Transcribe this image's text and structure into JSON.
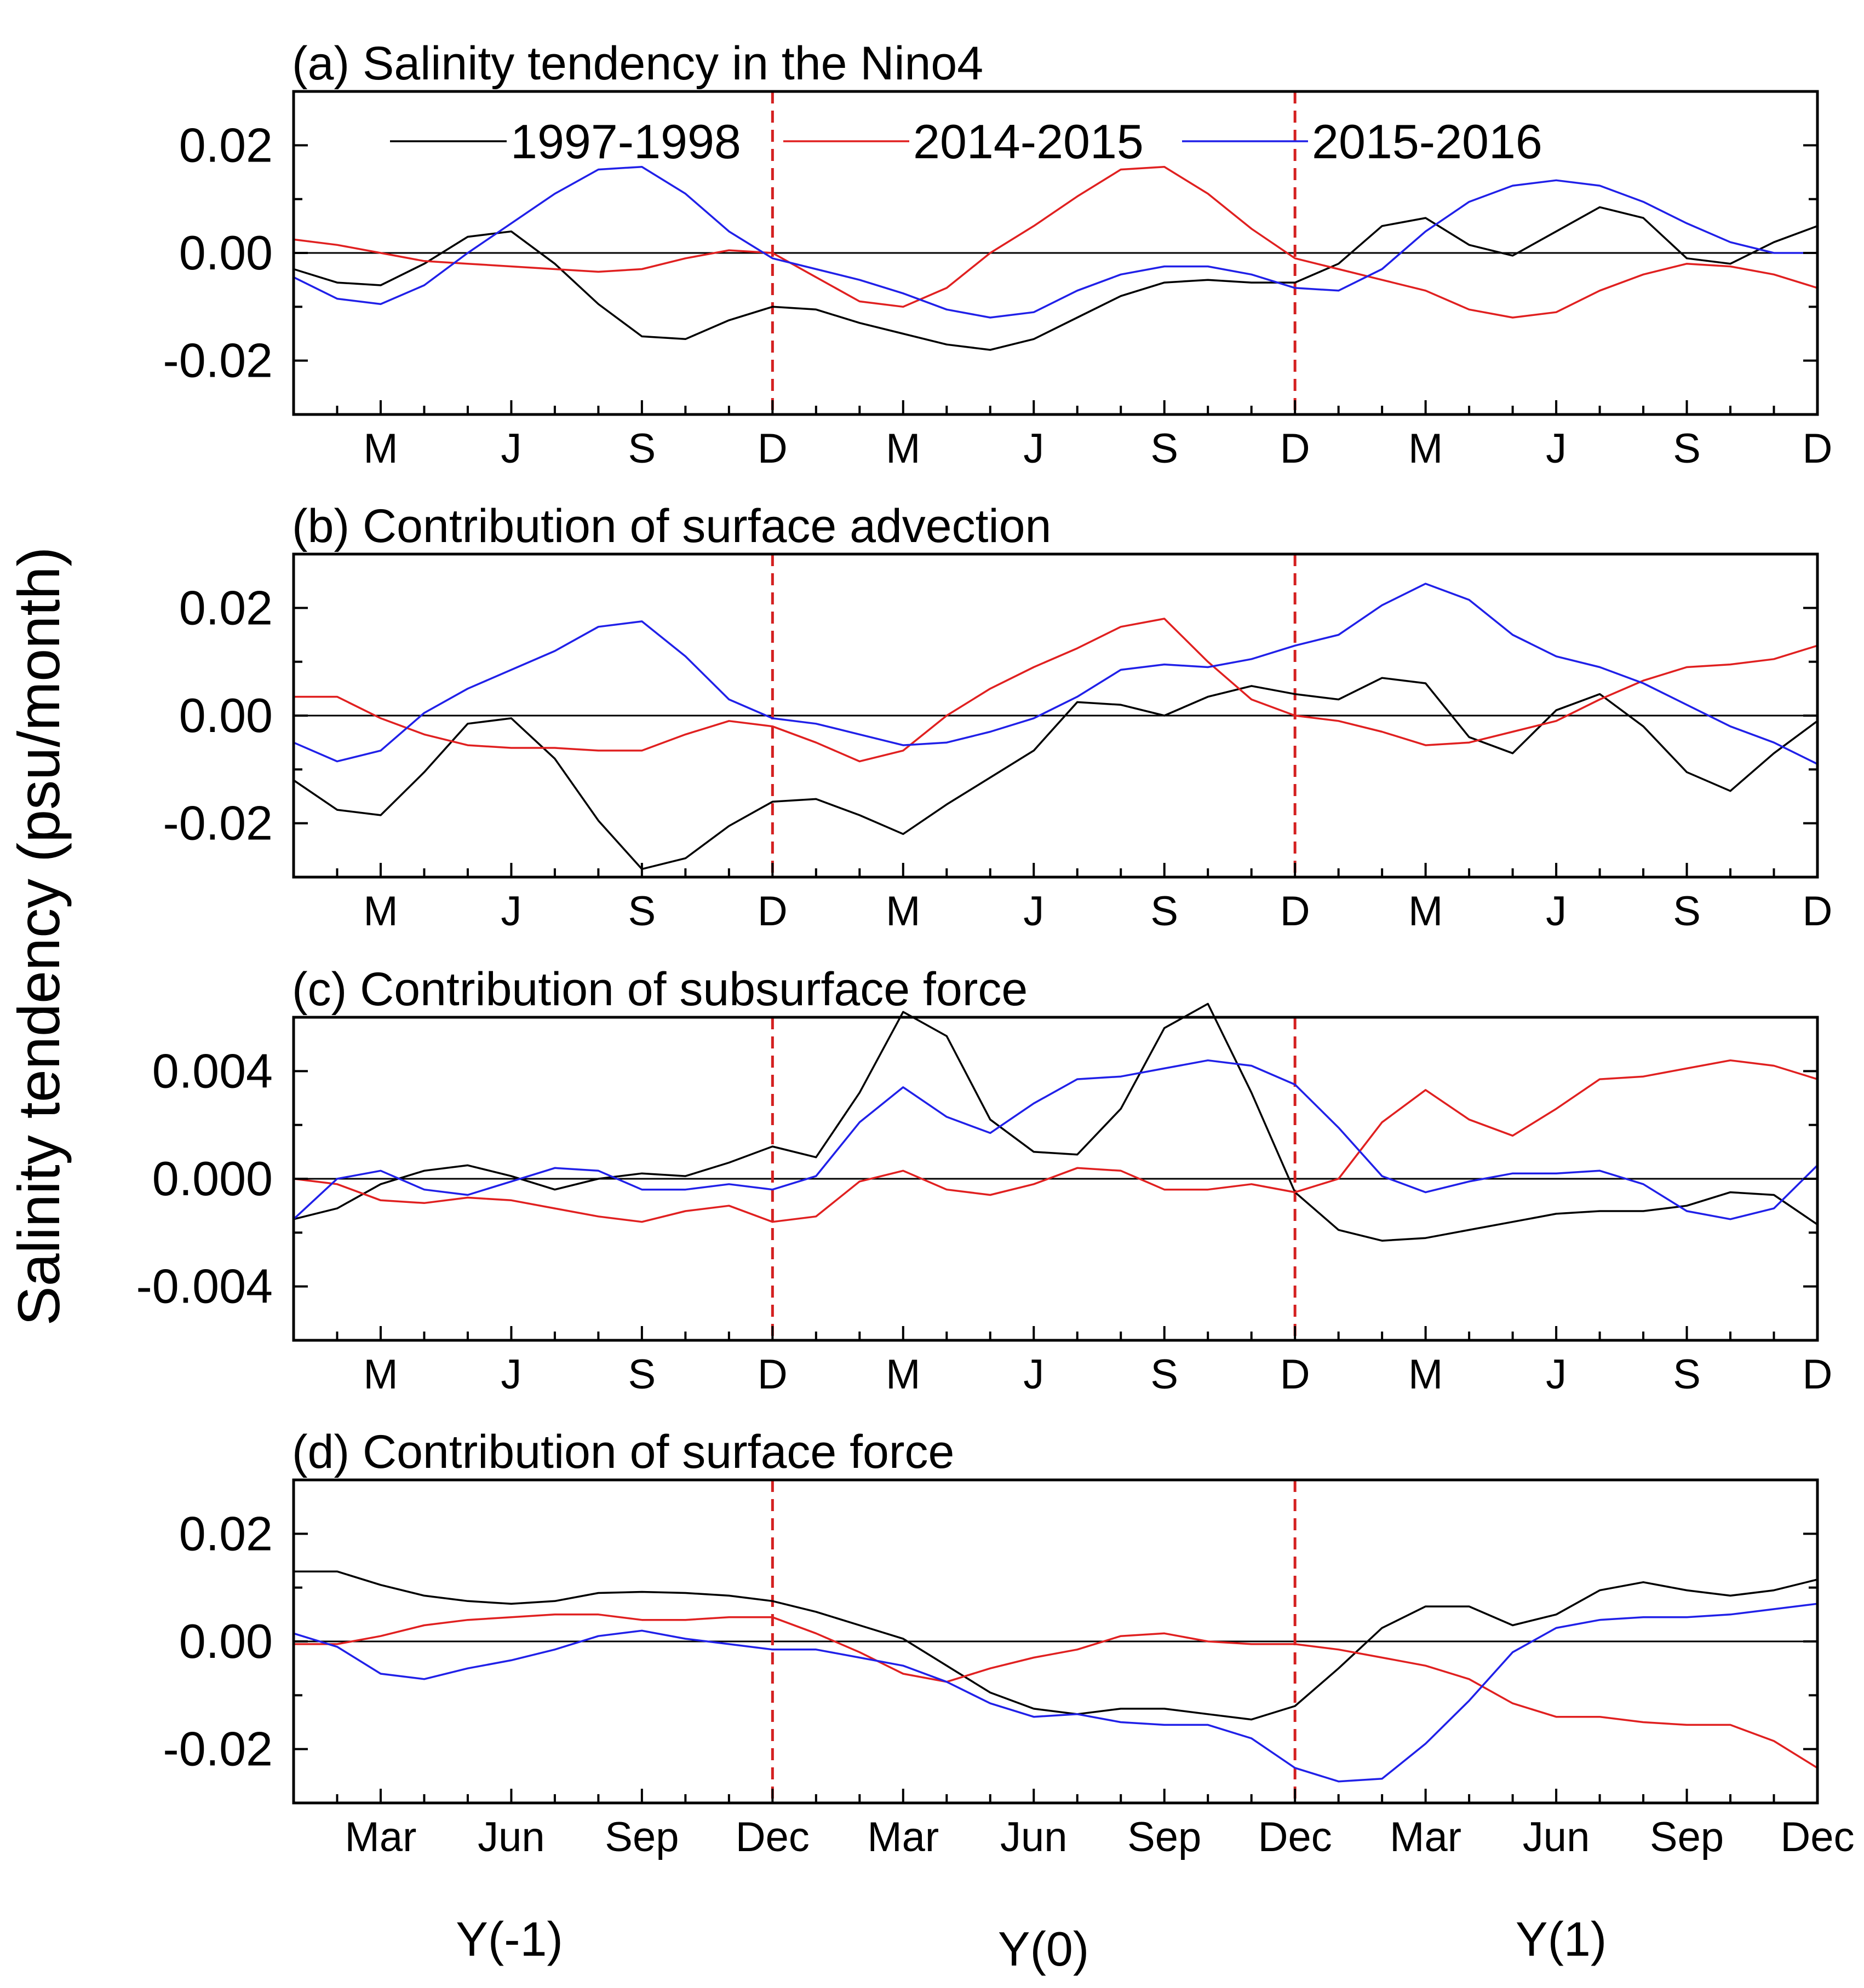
{
  "ylabel": "Salinity tendency (psu/month)",
  "year_labels": [
    "Y(-1)",
    "Y(0)",
    "Y(1)"
  ],
  "legend": [
    "1997-1998",
    "2014-2015",
    "2015-2016"
  ],
  "colors": {
    "1997-1998": "#000000",
    "2014-2015": "#e02020",
    "2015-2016": "#2020e8",
    "zero": "#000000",
    "divider": "#d42020"
  },
  "chart_data": [
    {
      "type": "line",
      "title": "(a) Salinity tendency  in the Nino4",
      "xticklabels": [
        "M",
        "J",
        "S",
        "D",
        "M",
        "J",
        "S",
        "D",
        "M",
        "J",
        "S",
        "D"
      ],
      "yticks": [
        -0.02,
        0.0,
        0.02
      ],
      "yticklabels": [
        "-0.02",
        "0.00",
        "0.02"
      ],
      "ylim": [
        -0.03,
        0.03
      ],
      "x_range": [
        1,
        36
      ],
      "x": [
        1,
        2,
        3,
        4,
        5,
        6,
        7,
        8,
        9,
        10,
        11,
        12,
        13,
        14,
        15,
        16,
        17,
        18,
        19,
        20,
        21,
        22,
        23,
        24,
        25,
        26,
        27,
        28,
        29,
        30,
        31,
        32,
        33,
        34,
        35,
        36
      ],
      "dividers": [
        12,
        24
      ],
      "legend_position": "top",
      "series": [
        {
          "name": "1997-1998",
          "values": [
            -0.003,
            -0.0055,
            -0.006,
            -0.002,
            0.003,
            0.004,
            -0.002,
            -0.0095,
            -0.0155,
            -0.016,
            -0.0125,
            -0.01,
            -0.0105,
            -0.013,
            -0.015,
            -0.017,
            -0.018,
            -0.016,
            -0.012,
            -0.008,
            -0.0055,
            -0.005,
            -0.0055,
            -0.0055,
            -0.002,
            0.005,
            0.0065,
            0.0015,
            -0.0005,
            0.004,
            0.0085,
            0.0065,
            -0.001,
            -0.002,
            0.002,
            0.005
          ]
        },
        {
          "name": "2014-2015",
          "values": [
            0.0025,
            0.0015,
            0.0,
            -0.0015,
            -0.002,
            -0.0025,
            -0.003,
            -0.0035,
            -0.003,
            -0.001,
            0.0005,
            0.0,
            -0.0045,
            -0.009,
            -0.01,
            -0.0065,
            0.0,
            0.005,
            0.0105,
            0.0155,
            0.016,
            0.011,
            0.0045,
            -0.001,
            -0.003,
            -0.005,
            -0.007,
            -0.0105,
            -0.012,
            -0.011,
            -0.007,
            -0.004,
            -0.002,
            -0.0025,
            -0.004,
            -0.0065
          ]
        },
        {
          "name": "2015-2016",
          "values": [
            -0.0045,
            -0.0085,
            -0.0095,
            -0.006,
            0.0,
            0.0055,
            0.011,
            0.0155,
            0.016,
            0.011,
            0.004,
            -0.001,
            -0.003,
            -0.005,
            -0.0075,
            -0.0105,
            -0.012,
            -0.011,
            -0.007,
            -0.004,
            -0.0025,
            -0.0025,
            -0.004,
            -0.0065,
            -0.007,
            -0.003,
            0.004,
            0.0095,
            0.0125,
            0.0135,
            0.0125,
            0.0095,
            0.0055,
            0.002,
            0.0,
            0.0
          ]
        }
      ]
    },
    {
      "type": "line",
      "title": "(b) Contribution of surface advection",
      "xticklabels": [
        "M",
        "J",
        "S",
        "D",
        "M",
        "J",
        "S",
        "D",
        "M",
        "J",
        "S",
        "D"
      ],
      "yticks": [
        -0.02,
        0.0,
        0.02
      ],
      "yticklabels": [
        "-0.02",
        "0.00",
        "0.02"
      ],
      "ylim": [
        -0.03,
        0.03
      ],
      "x_range": [
        1,
        36
      ],
      "x": [
        1,
        2,
        3,
        4,
        5,
        6,
        7,
        8,
        9,
        10,
        11,
        12,
        13,
        14,
        15,
        16,
        17,
        18,
        19,
        20,
        21,
        22,
        23,
        24,
        25,
        26,
        27,
        28,
        29,
        30,
        31,
        32,
        33,
        34,
        35,
        36
      ],
      "dividers": [
        12,
        24
      ],
      "series": [
        {
          "name": "1997-1998",
          "values": [
            -0.012,
            -0.0175,
            -0.0185,
            -0.0105,
            -0.0015,
            -0.0005,
            -0.008,
            -0.0195,
            -0.0285,
            -0.0265,
            -0.0205,
            -0.016,
            -0.0155,
            -0.0185,
            -0.022,
            -0.0165,
            -0.0115,
            -0.0065,
            0.0025,
            0.002,
            0.0,
            0.0035,
            0.0055,
            0.004,
            0.003,
            0.007,
            0.006,
            -0.004,
            -0.007,
            0.001,
            0.004,
            -0.002,
            -0.0105,
            -0.014,
            -0.007,
            -0.001
          ]
        },
        {
          "name": "2014-2015",
          "values": [
            0.0035,
            0.0035,
            -0.0005,
            -0.0035,
            -0.0055,
            -0.006,
            -0.006,
            -0.0065,
            -0.0065,
            -0.0035,
            -0.001,
            -0.002,
            -0.005,
            -0.0085,
            -0.0065,
            0.0,
            0.005,
            0.009,
            0.0125,
            0.0165,
            0.018,
            0.01,
            0.003,
            0.0,
            -0.001,
            -0.003,
            -0.0055,
            -0.005,
            -0.003,
            -0.001,
            0.003,
            0.0065,
            0.009,
            0.0095,
            0.0105,
            0.013
          ]
        },
        {
          "name": "2015-2016",
          "values": [
            -0.005,
            -0.0085,
            -0.0065,
            0.0005,
            0.005,
            0.0085,
            0.012,
            0.0165,
            0.0175,
            0.011,
            0.003,
            -0.0005,
            -0.0015,
            -0.0035,
            -0.0055,
            -0.005,
            -0.003,
            -0.0005,
            0.0035,
            0.0085,
            0.0095,
            0.009,
            0.0105,
            0.013,
            0.015,
            0.0205,
            0.0245,
            0.0215,
            0.015,
            0.011,
            0.009,
            0.006,
            0.002,
            -0.002,
            -0.005,
            -0.009
          ]
        }
      ]
    },
    {
      "type": "line",
      "title": "(c) Contribution of subsurface force",
      "xticklabels": [
        "M",
        "J",
        "S",
        "D",
        "M",
        "J",
        "S",
        "D",
        "M",
        "J",
        "S",
        "D"
      ],
      "yticks": [
        -0.004,
        0.0,
        0.004
      ],
      "yticklabels": [
        "-0.004",
        "0.000",
        "0.004"
      ],
      "ylim": [
        -0.006,
        0.006
      ],
      "x_range": [
        1,
        36
      ],
      "x": [
        1,
        2,
        3,
        4,
        5,
        6,
        7,
        8,
        9,
        10,
        11,
        12,
        13,
        14,
        15,
        16,
        17,
        18,
        19,
        20,
        21,
        22,
        23,
        24,
        25,
        26,
        27,
        28,
        29,
        30,
        31,
        32,
        33,
        34,
        35,
        36
      ],
      "dividers": [
        12,
        24
      ],
      "series": [
        {
          "name": "1997-1998",
          "values": [
            -0.0015,
            -0.0011,
            -0.0002,
            0.0003,
            0.0005,
            0.0001,
            -0.0004,
            0.0,
            0.0002,
            0.0001,
            0.0006,
            0.0012,
            0.0008,
            0.0032,
            0.0062,
            0.0053,
            0.0022,
            0.001,
            0.0009,
            0.0026,
            0.0056,
            0.0065,
            0.0032,
            -0.0005,
            -0.0019,
            -0.0023,
            -0.0022,
            -0.0019,
            -0.0016,
            -0.0013,
            -0.0012,
            -0.0012,
            -0.001,
            -0.0005,
            -0.0006,
            -0.0017
          ]
        },
        {
          "name": "2014-2015",
          "values": [
            0.0,
            -0.0002,
            -0.0008,
            -0.0009,
            -0.0007,
            -0.0008,
            -0.0011,
            -0.0014,
            -0.0016,
            -0.0012,
            -0.001,
            -0.0016,
            -0.0014,
            -0.0001,
            0.0003,
            -0.0004,
            -0.0006,
            -0.0002,
            0.0004,
            0.0003,
            -0.0004,
            -0.0004,
            -0.0002,
            -0.0005,
            0.0,
            0.0021,
            0.0033,
            0.0022,
            0.0016,
            0.0026,
            0.0037,
            0.0038,
            0.0041,
            0.0044,
            0.0042,
            0.0037
          ]
        },
        {
          "name": "2015-2016",
          "values": [
            -0.0015,
            0.0,
            0.0003,
            -0.0004,
            -0.0006,
            -0.0001,
            0.0004,
            0.0003,
            -0.0004,
            -0.0004,
            -0.0002,
            -0.0004,
            0.0001,
            0.0021,
            0.0034,
            0.0023,
            0.0017,
            0.0028,
            0.0037,
            0.0038,
            0.0041,
            0.0044,
            0.0042,
            0.0035,
            0.0019,
            0.0001,
            -0.0005,
            -0.0001,
            0.0002,
            0.0002,
            0.0003,
            -0.0002,
            -0.0012,
            -0.0015,
            -0.0011,
            0.0005
          ]
        }
      ]
    },
    {
      "type": "line",
      "title": "(d) Contribution of surface force",
      "xticklabels": [
        "Mar",
        "Jun",
        "Sep",
        "Dec",
        "Mar",
        "Jun",
        "Sep",
        "Dec",
        "Mar",
        "Jun",
        "Sep",
        "Dec"
      ],
      "yticks": [
        -0.02,
        0.0,
        0.02
      ],
      "yticklabels": [
        "-0.02",
        "0.00",
        "0.02"
      ],
      "ylim": [
        -0.03,
        0.03
      ],
      "x_range": [
        1,
        36
      ],
      "x": [
        1,
        2,
        3,
        4,
        5,
        6,
        7,
        8,
        9,
        10,
        11,
        12,
        13,
        14,
        15,
        16,
        17,
        18,
        19,
        20,
        21,
        22,
        23,
        24,
        25,
        26,
        27,
        28,
        29,
        30,
        31,
        32,
        33,
        34,
        35,
        36
      ],
      "dividers": [
        12,
        24
      ],
      "series": [
        {
          "name": "1997-1998",
          "values": [
            0.013,
            0.013,
            0.0105,
            0.0085,
            0.0075,
            0.007,
            0.0075,
            0.009,
            0.0092,
            0.009,
            0.0085,
            0.0075,
            0.0055,
            0.003,
            0.0005,
            -0.0045,
            -0.0095,
            -0.0125,
            -0.0135,
            -0.0125,
            -0.0125,
            -0.0135,
            -0.0145,
            -0.012,
            -0.005,
            0.0025,
            0.0065,
            0.0065,
            0.003,
            0.005,
            0.0095,
            0.011,
            0.0095,
            0.0085,
            0.0095,
            0.0115
          ]
        },
        {
          "name": "2014-2015",
          "values": [
            -0.0005,
            -0.0005,
            0.001,
            0.003,
            0.004,
            0.0045,
            0.005,
            0.005,
            0.004,
            0.004,
            0.0045,
            0.0045,
            0.0015,
            -0.002,
            -0.006,
            -0.0075,
            -0.005,
            -0.003,
            -0.0015,
            0.001,
            0.0015,
            0.0,
            -0.0005,
            -0.0005,
            -0.0015,
            -0.003,
            -0.0045,
            -0.007,
            -0.0115,
            -0.014,
            -0.014,
            -0.015,
            -0.0155,
            -0.0155,
            -0.0185,
            -0.0235
          ]
        },
        {
          "name": "2015-2016",
          "values": [
            0.0015,
            -0.001,
            -0.006,
            -0.007,
            -0.005,
            -0.0035,
            -0.0015,
            0.001,
            0.002,
            0.0005,
            -0.0005,
            -0.0015,
            -0.0015,
            -0.003,
            -0.0045,
            -0.0075,
            -0.0115,
            -0.014,
            -0.0135,
            -0.015,
            -0.0155,
            -0.0155,
            -0.018,
            -0.0235,
            -0.026,
            -0.0255,
            -0.019,
            -0.011,
            -0.002,
            0.0025,
            0.004,
            0.0045,
            0.0045,
            0.005,
            0.006,
            0.007
          ]
        }
      ]
    }
  ]
}
